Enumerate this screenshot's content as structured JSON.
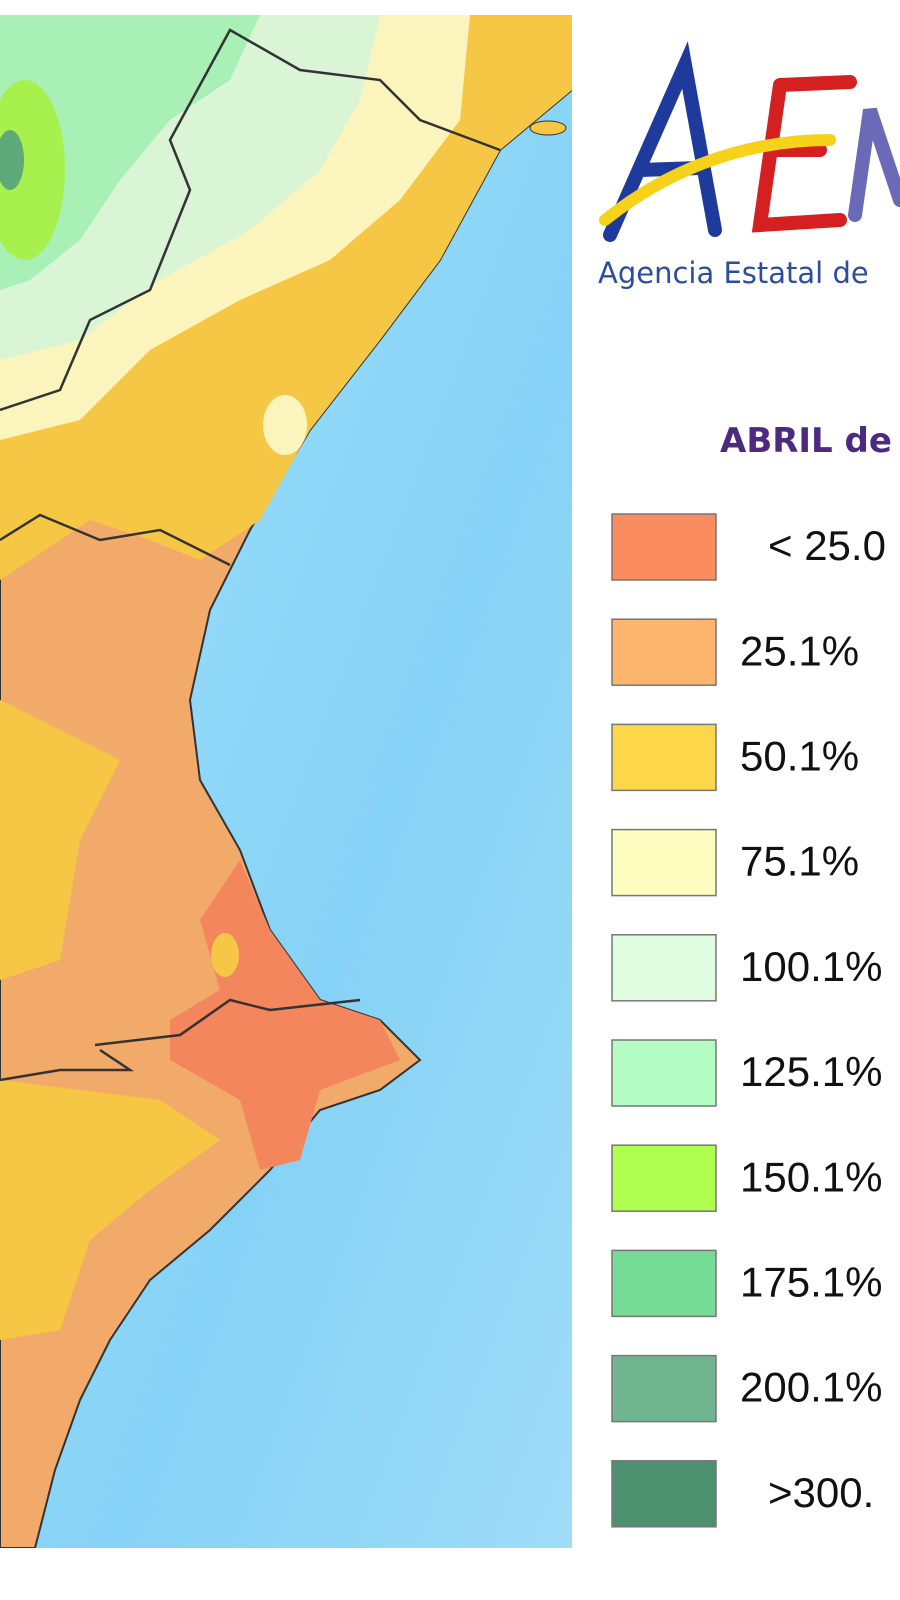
{
  "logo": {
    "agency": "Agencia Estatal de"
  },
  "legend": {
    "title": "ABRIL de",
    "items": [
      {
        "label": "< 25.0",
        "color": "#fb8c5f"
      },
      {
        "label": "25.1%",
        "color": "#fdb56e"
      },
      {
        "label": "50.1%",
        "color": "#fdd64a"
      },
      {
        "label": "75.1%",
        "color": "#fefdc0"
      },
      {
        "label": "100.1%",
        "color": "#e0fce0"
      },
      {
        "label": "125.1%",
        "color": "#b3fdc4"
      },
      {
        "label": "150.1%",
        "color": "#b0ff50"
      },
      {
        "label": "175.1%",
        "color": "#74dc96"
      },
      {
        "label": "200.1%",
        "color": "#70b490"
      },
      {
        "label": ">300.",
        "color": "#4d9070"
      }
    ]
  }
}
